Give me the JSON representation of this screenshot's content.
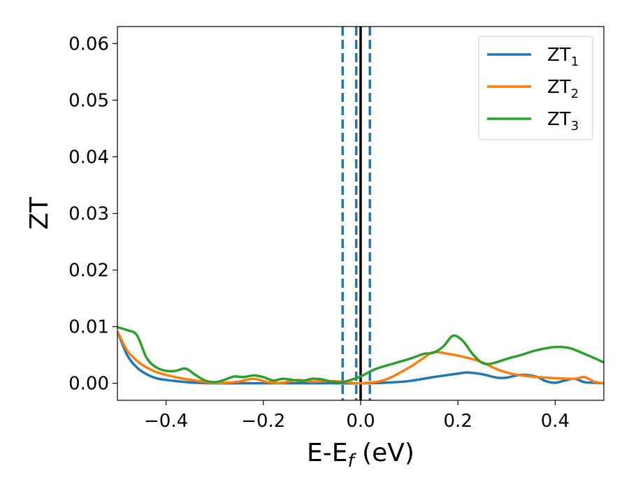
{
  "chart_data": {
    "type": "line",
    "xlabel": "E-E",
    "xlabel_sub": "f",
    "xlabel_unit": " (eV)",
    "ylabel": "ZT",
    "xlim": [
      -0.5,
      0.5
    ],
    "ylim": [
      -0.003,
      0.063
    ],
    "xticks": [
      -0.4,
      -0.2,
      0.0,
      0.2,
      0.4
    ],
    "xtick_labels": [
      "−0.4",
      "−0.2",
      "0.0",
      "0.2",
      "0.4"
    ],
    "yticks": [
      0.0,
      0.01,
      0.02,
      0.03,
      0.04,
      0.05,
      0.06
    ],
    "ytick_labels": [
      "0.00",
      "0.01",
      "0.02",
      "0.03",
      "0.04",
      "0.05",
      "0.06"
    ],
    "grid": false,
    "legend_position": "top-right",
    "vlines": [
      {
        "x": -0.037,
        "style": "dashed",
        "color": "#1f77b4"
      },
      {
        "x": -0.009,
        "style": "dashed",
        "color": "#1f77b4"
      },
      {
        "x": 0.0,
        "style": "solid",
        "color": "#000000"
      },
      {
        "x": 0.019,
        "style": "dashed",
        "color": "#1f77b4"
      }
    ],
    "series": [
      {
        "name": "ZT",
        "sub": "1",
        "color": "#1f77b4",
        "x": [
          -0.5,
          -0.48,
          -0.46,
          -0.44,
          -0.42,
          -0.4,
          -0.37,
          -0.34,
          -0.3,
          -0.25,
          -0.2,
          -0.15,
          -0.1,
          -0.05,
          0.0,
          0.05,
          0.1,
          0.15,
          0.2,
          0.22,
          0.25,
          0.28,
          0.3,
          0.33,
          0.36,
          0.38,
          0.4,
          0.42,
          0.44,
          0.46,
          0.48,
          0.5
        ],
        "y": [
          0.0092,
          0.005,
          0.0028,
          0.0016,
          0.0009,
          0.0006,
          0.0003,
          0.0001,
          0.0,
          0.0,
          0.0,
          0.0,
          0.0,
          0.0,
          0.0,
          0.0001,
          0.0004,
          0.0011,
          0.0017,
          0.0019,
          0.0016,
          0.001,
          0.001,
          0.0015,
          0.0012,
          0.0004,
          0.0001,
          0.0005,
          0.0008,
          0.0002,
          0.0001,
          0.0
        ]
      },
      {
        "name": "ZT",
        "sub": "2",
        "color": "#ff7f0e",
        "x": [
          -0.5,
          -0.48,
          -0.46,
          -0.44,
          -0.42,
          -0.4,
          -0.37,
          -0.34,
          -0.31,
          -0.28,
          -0.25,
          -0.22,
          -0.19,
          -0.16,
          -0.13,
          -0.1,
          -0.07,
          -0.04,
          0.0,
          0.05,
          0.1,
          0.13,
          0.15,
          0.18,
          0.22,
          0.25,
          0.28,
          0.31,
          0.35,
          0.4,
          0.44,
          0.46,
          0.48,
          0.5
        ],
        "y": [
          0.0092,
          0.0058,
          0.004,
          0.0028,
          0.002,
          0.0015,
          0.0009,
          0.0005,
          0.0001,
          0.0001,
          0.0003,
          0.0008,
          0.0002,
          0.0001,
          0.0006,
          0.0003,
          0.0004,
          0.0003,
          0.0,
          0.0006,
          0.0028,
          0.0045,
          0.0055,
          0.0052,
          0.0045,
          0.0037,
          0.0025,
          0.0017,
          0.0012,
          0.0009,
          0.0008,
          0.0011,
          0.0003,
          0.0
        ]
      },
      {
        "name": "ZT",
        "sub": "3",
        "color": "#2ca02c",
        "x": [
          -0.5,
          -0.48,
          -0.46,
          -0.44,
          -0.42,
          -0.4,
          -0.38,
          -0.36,
          -0.34,
          -0.32,
          -0.3,
          -0.28,
          -0.26,
          -0.24,
          -0.22,
          -0.2,
          -0.18,
          -0.16,
          -0.14,
          -0.12,
          -0.1,
          -0.08,
          -0.06,
          -0.04,
          -0.02,
          0.0,
          0.03,
          0.06,
          0.1,
          0.13,
          0.15,
          0.17,
          0.19,
          0.21,
          0.23,
          0.25,
          0.27,
          0.3,
          0.33,
          0.36,
          0.4,
          0.43,
          0.46,
          0.5
        ],
        "y": [
          0.0099,
          0.0094,
          0.0085,
          0.0045,
          0.0028,
          0.0022,
          0.0022,
          0.0026,
          0.0015,
          0.0005,
          0.0002,
          0.0006,
          0.0012,
          0.0011,
          0.0014,
          0.0011,
          0.0005,
          0.0008,
          0.0006,
          0.0004,
          0.0008,
          0.0007,
          0.0003,
          0.0002,
          0.0006,
          0.0012,
          0.0025,
          0.0033,
          0.0043,
          0.0052,
          0.0054,
          0.0065,
          0.0084,
          0.0075,
          0.0052,
          0.0036,
          0.0035,
          0.0043,
          0.005,
          0.0058,
          0.0064,
          0.0062,
          0.0052,
          0.0037
        ]
      }
    ]
  }
}
